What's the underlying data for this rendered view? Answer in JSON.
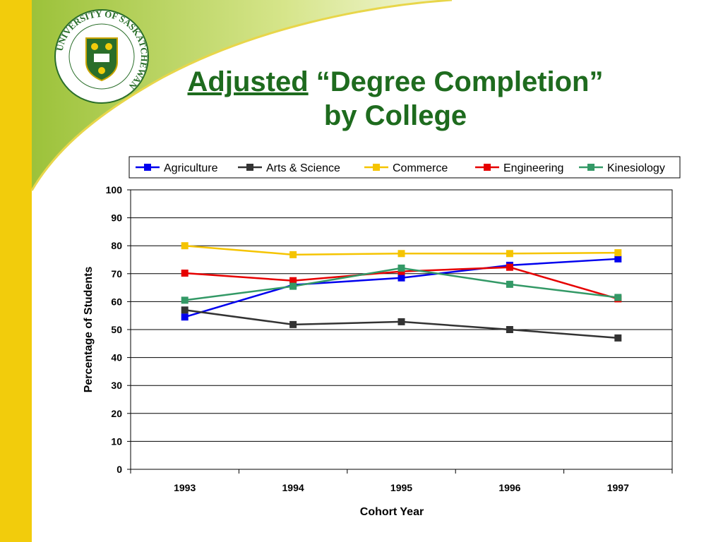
{
  "slide": {
    "title_underlined": "Adjusted",
    "title_rest": "“Degree Completion”",
    "title_line2": "by College",
    "logo": {
      "icon": "university-of-saskatchewan-crest",
      "text": "UNIVERSITY OF SASKATCHEWAN"
    }
  },
  "chart_data": {
    "type": "line",
    "xlabel": "Cohort Year",
    "ylabel": "Percentage of Students",
    "categories": [
      "1993",
      "1994",
      "1995",
      "1996",
      "1997"
    ],
    "ylim": [
      0,
      100
    ],
    "yticks": [
      "0",
      "10",
      "20",
      "30",
      "40",
      "50",
      "60",
      "70",
      "80",
      "90",
      "100"
    ],
    "grid": true,
    "legend_position": "top",
    "series": [
      {
        "name": "Agriculture",
        "color": "#0000ee",
        "values": [
          54.5,
          66.0,
          68.5,
          73.0,
          75.3
        ]
      },
      {
        "name": "Arts & Science",
        "color": "#333333",
        "values": [
          57.0,
          51.8,
          52.8,
          50.0,
          47.0
        ]
      },
      {
        "name": "Commerce",
        "color": "#f5c400",
        "values": [
          80.0,
          76.8,
          77.2,
          77.2,
          77.5
        ]
      },
      {
        "name": "Engineering",
        "color": "#e60000",
        "values": [
          70.2,
          67.5,
          70.8,
          72.3,
          61.0
        ]
      },
      {
        "name": "Kinesiology",
        "color": "#339966",
        "values": [
          60.5,
          65.5,
          72.0,
          66.2,
          61.5
        ]
      }
    ]
  }
}
